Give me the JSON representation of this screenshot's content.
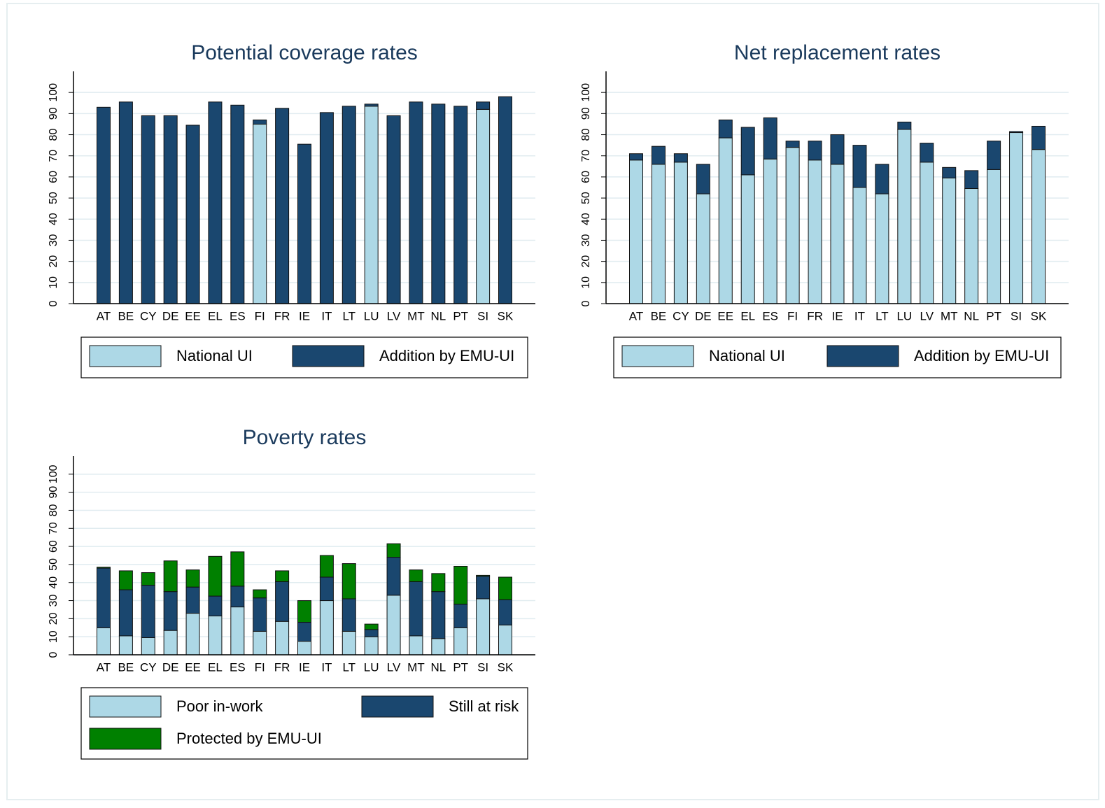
{
  "chart_data": [
    {
      "type": "bar",
      "stacked": true,
      "title": "Potential coverage rates",
      "categories": [
        "AT",
        "BE",
        "CY",
        "DE",
        "EE",
        "EL",
        "ES",
        "FI",
        "FR",
        "IE",
        "IT",
        "LT",
        "LU",
        "LV",
        "MT",
        "NL",
        "PT",
        "SI",
        "SK"
      ],
      "series": [
        {
          "name": "National UI",
          "color": "#add8e6",
          "values": [
            0,
            0,
            0,
            0,
            0,
            0,
            0,
            85,
            0,
            0,
            0,
            0,
            93.5,
            0,
            0,
            0,
            0,
            92,
            0
          ]
        },
        {
          "name": "Addition by EMU-UI",
          "color": "#1a476f",
          "values": [
            93,
            95.5,
            89,
            89,
            84.5,
            95.5,
            94,
            2,
            92.5,
            75.5,
            90.5,
            93.5,
            1,
            89,
            95.5,
            94.5,
            93.5,
            3.5,
            98
          ]
        }
      ],
      "ylim": [
        0,
        110
      ],
      "yticks": [
        0,
        10,
        20,
        30,
        40,
        50,
        60,
        70,
        80,
        90,
        100
      ],
      "grid": true,
      "legend": "bottom"
    },
    {
      "type": "bar",
      "stacked": true,
      "title": "Net replacement rates",
      "categories": [
        "AT",
        "BE",
        "CY",
        "DE",
        "EE",
        "EL",
        "ES",
        "FI",
        "FR",
        "IE",
        "IT",
        "LT",
        "LU",
        "LV",
        "MT",
        "NL",
        "PT",
        "SI",
        "SK"
      ],
      "series": [
        {
          "name": "National UI",
          "color": "#add8e6",
          "values": [
            68,
            66,
            67,
            52,
            78.5,
            61,
            68.5,
            74,
            68,
            66,
            55,
            52,
            82.5,
            67,
            59.5,
            54.5,
            63.5,
            81,
            73
          ]
        },
        {
          "name": "Addition by EMU-UI",
          "color": "#1a476f",
          "values": [
            3,
            8.5,
            4,
            14,
            8.5,
            22.5,
            19.5,
            3,
            9,
            14,
            20,
            14,
            3.5,
            9,
            5,
            8.5,
            13.5,
            0.5,
            11
          ]
        }
      ],
      "ylim": [
        0,
        110
      ],
      "yticks": [
        0,
        10,
        20,
        30,
        40,
        50,
        60,
        70,
        80,
        90,
        100
      ],
      "grid": true,
      "legend": "bottom"
    },
    {
      "type": "bar",
      "stacked": true,
      "title": "Poverty rates",
      "categories": [
        "AT",
        "BE",
        "CY",
        "DE",
        "EE",
        "EL",
        "ES",
        "FI",
        "FR",
        "IE",
        "IT",
        "LT",
        "LU",
        "LV",
        "MT",
        "NL",
        "PT",
        "SI",
        "SK"
      ],
      "series": [
        {
          "name": "Poor in-work",
          "color": "#add8e6",
          "values": [
            15,
            10.5,
            9.5,
            13.5,
            23,
            21.5,
            26.5,
            13,
            18.5,
            7.5,
            30,
            13,
            10,
            33,
            10.5,
            9,
            15,
            31,
            16.5
          ]
        },
        {
          "name": "Still at risk",
          "color": "#1a476f",
          "values": [
            33,
            25.5,
            29,
            21.5,
            14.5,
            11,
            11.5,
            18.5,
            22,
            10.5,
            13,
            18,
            4,
            21,
            30,
            26,
            13,
            12.5,
            14
          ]
        },
        {
          "name": "Protected by EMU-UI",
          "color": "#008000",
          "values": [
            0.5,
            10.5,
            7,
            17,
            9.5,
            22,
            19,
            4.5,
            6,
            12,
            12,
            19.5,
            3,
            7.5,
            6.5,
            10,
            21,
            0.5,
            12.5
          ]
        }
      ],
      "ylim": [
        0,
        110
      ],
      "yticks": [
        0,
        10,
        20,
        30,
        40,
        50,
        60,
        70,
        80,
        90,
        100
      ],
      "grid": true,
      "legend": "bottom"
    }
  ]
}
